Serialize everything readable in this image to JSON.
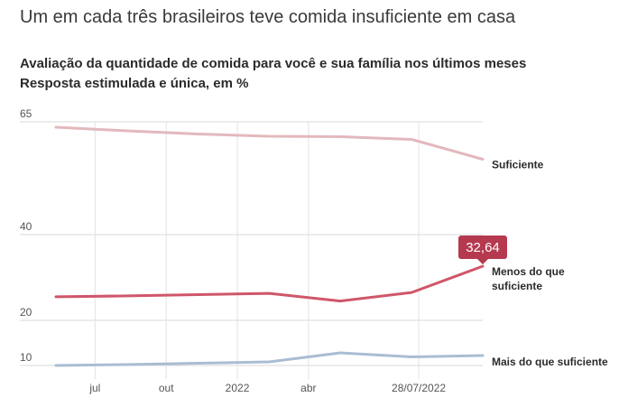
{
  "header": {
    "title": "Um em cada três brasileiros teve comida insuficiente em casa",
    "subtitle_line1": "Avaliação da quantidade de comida para você e sua família nos últimos meses",
    "subtitle_line2": "Resposta estimulada e única, em %"
  },
  "chart_data": {
    "type": "line",
    "title": "Um em cada três brasileiros teve comida insuficiente em casa",
    "subtitle": "Avaliação da quantidade de comida para você e sua família nos últimos meses — Resposta estimulada e única, em %",
    "x": [
      0,
      1,
      2,
      3,
      4,
      5,
      6
    ],
    "x_tick_labels": [
      {
        "x": 0.55,
        "label": "jul"
      },
      {
        "x": 1.55,
        "label": "out"
      },
      {
        "x": 2.55,
        "label": "2022"
      },
      {
        "x": 3.55,
        "label": "abr"
      },
      {
        "x": 5.1,
        "label": "28/07/2022"
      }
    ],
    "y_ticks": [
      10,
      20,
      40,
      65
    ],
    "ylim": [
      8,
      67
    ],
    "grid": true,
    "series": [
      {
        "name": "Suficiente",
        "color": "#e2b9bd",
        "values": [
          63.8,
          63.0,
          62.3,
          61.8,
          61.7,
          61.1,
          56.7
        ]
      },
      {
        "name": "Menos do que suficiente",
        "color": "#d0566a",
        "values": [
          25.5,
          25.7,
          26.0,
          26.3,
          24.5,
          26.5,
          32.64
        ]
      },
      {
        "name": "Mais do que suficiente",
        "color": "#a9bdd3",
        "values": [
          10.0,
          10.2,
          10.5,
          10.8,
          12.8,
          11.9,
          12.2
        ]
      }
    ],
    "annotation": {
      "series": "Menos do que suficiente",
      "value_label": "32,64",
      "color": "#b5394f"
    },
    "series_labels": [
      {
        "name": "Suficiente",
        "lines": [
          "Suficiente"
        ]
      },
      {
        "name": "Menos do que suficiente",
        "lines": [
          "Menos do que",
          "suficiente"
        ]
      },
      {
        "name": "Mais do que suficiente",
        "lines": [
          "Mais do que suficiente"
        ]
      }
    ]
  }
}
